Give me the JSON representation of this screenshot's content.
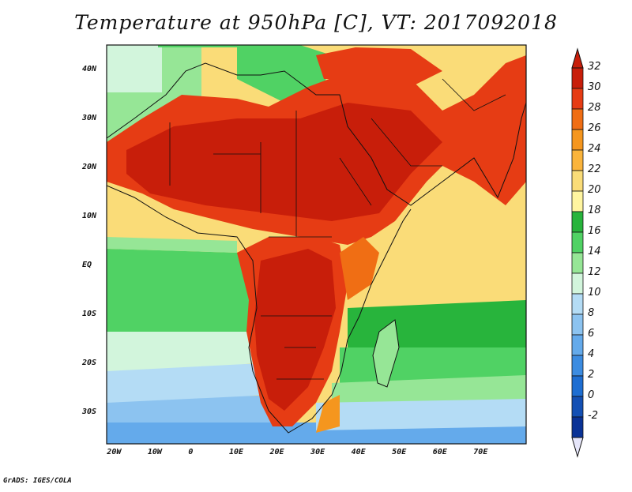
{
  "title": "Temperature at 950hPa [C], VT: 2017092018",
  "credit": "GrADS: IGES/COLA",
  "map": {
    "lon_ticks": [
      "20W",
      "10W",
      "0",
      "10E",
      "20E",
      "30E",
      "40E",
      "50E",
      "60E",
      "70E"
    ],
    "lat_ticks": [
      "40N",
      "30N",
      "20N",
      "10N",
      "EQ",
      "10S",
      "20S",
      "30S"
    ],
    "extent": {
      "lon_min": -22,
      "lon_max": 81,
      "lat_min": -36.5,
      "lat_max": 45
    }
  },
  "colorbar": {
    "labels": [
      "32",
      "30",
      "28",
      "26",
      "24",
      "22",
      "20",
      "18",
      "16",
      "14",
      "12",
      "10",
      "8",
      "6",
      "4",
      "2",
      "0",
      "-2"
    ],
    "colors": [
      "#c81e0a",
      "#e63c14",
      "#f06e14",
      "#f5961e",
      "#fab43c",
      "#fadc78",
      "#fff5a0",
      "#28b43c",
      "#50d264",
      "#96e696",
      "#d2f5dc",
      "#b4dcf5",
      "#8cc3f0",
      "#64aaeb",
      "#3c8ce1",
      "#1e6ed2",
      "#1450b4",
      "#0a3296"
    ],
    "top_arrow_color": "#c81e0a",
    "bottom_arrow_color": "#e6e6fa"
  }
}
